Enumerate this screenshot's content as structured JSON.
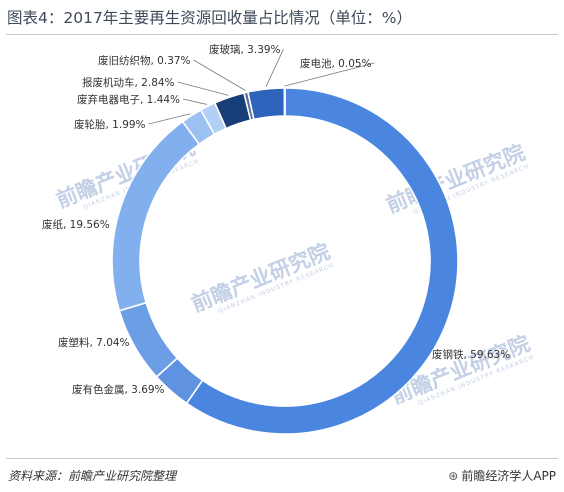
{
  "title": "图表4：2017年主要再生资源回收量占比情况（单位：%）",
  "source": "资料来源：前瞻产业研究院整理",
  "brand": {
    "icon": "brand-logo-icon",
    "text": "前瞻经济学人APP"
  },
  "watermark": "前瞻产业研究院",
  "watermark_sub": "QIANZHAN INDUSTRY RESEARCH",
  "chart_data": {
    "type": "pie",
    "donut": true,
    "unit": "%",
    "categories": [
      "废钢铁",
      "废有色金属",
      "废塑料",
      "废纸",
      "废轮胎",
      "废弃电器电子",
      "报废机动车",
      "废旧纺织物",
      "废玻璃",
      "废电池"
    ],
    "values": [
      59.63,
      3.69,
      7.04,
      19.56,
      1.99,
      1.44,
      2.84,
      0.37,
      3.39,
      0.05
    ],
    "labels": [
      "废钢铁, 59.63%",
      "废有色金属, 3.69%",
      "废塑料, 7.04%",
      "废纸, 19.56%",
      "废轮胎, 1.99%",
      "废弃电器电子, 1.44%",
      "报废机动车, 2.84%",
      "废旧纺织物, 0.37%",
      "废玻璃, 3.39%",
      "废电池, 0.05%"
    ],
    "colors": [
      "#4a86e0",
      "#5f93e2",
      "#6c9ee6",
      "#82afee",
      "#9bc1f3",
      "#b2d0f6",
      "#173e78",
      "#5a6e90",
      "#2d63ba",
      "#1a4a96"
    ],
    "legend": "none"
  }
}
